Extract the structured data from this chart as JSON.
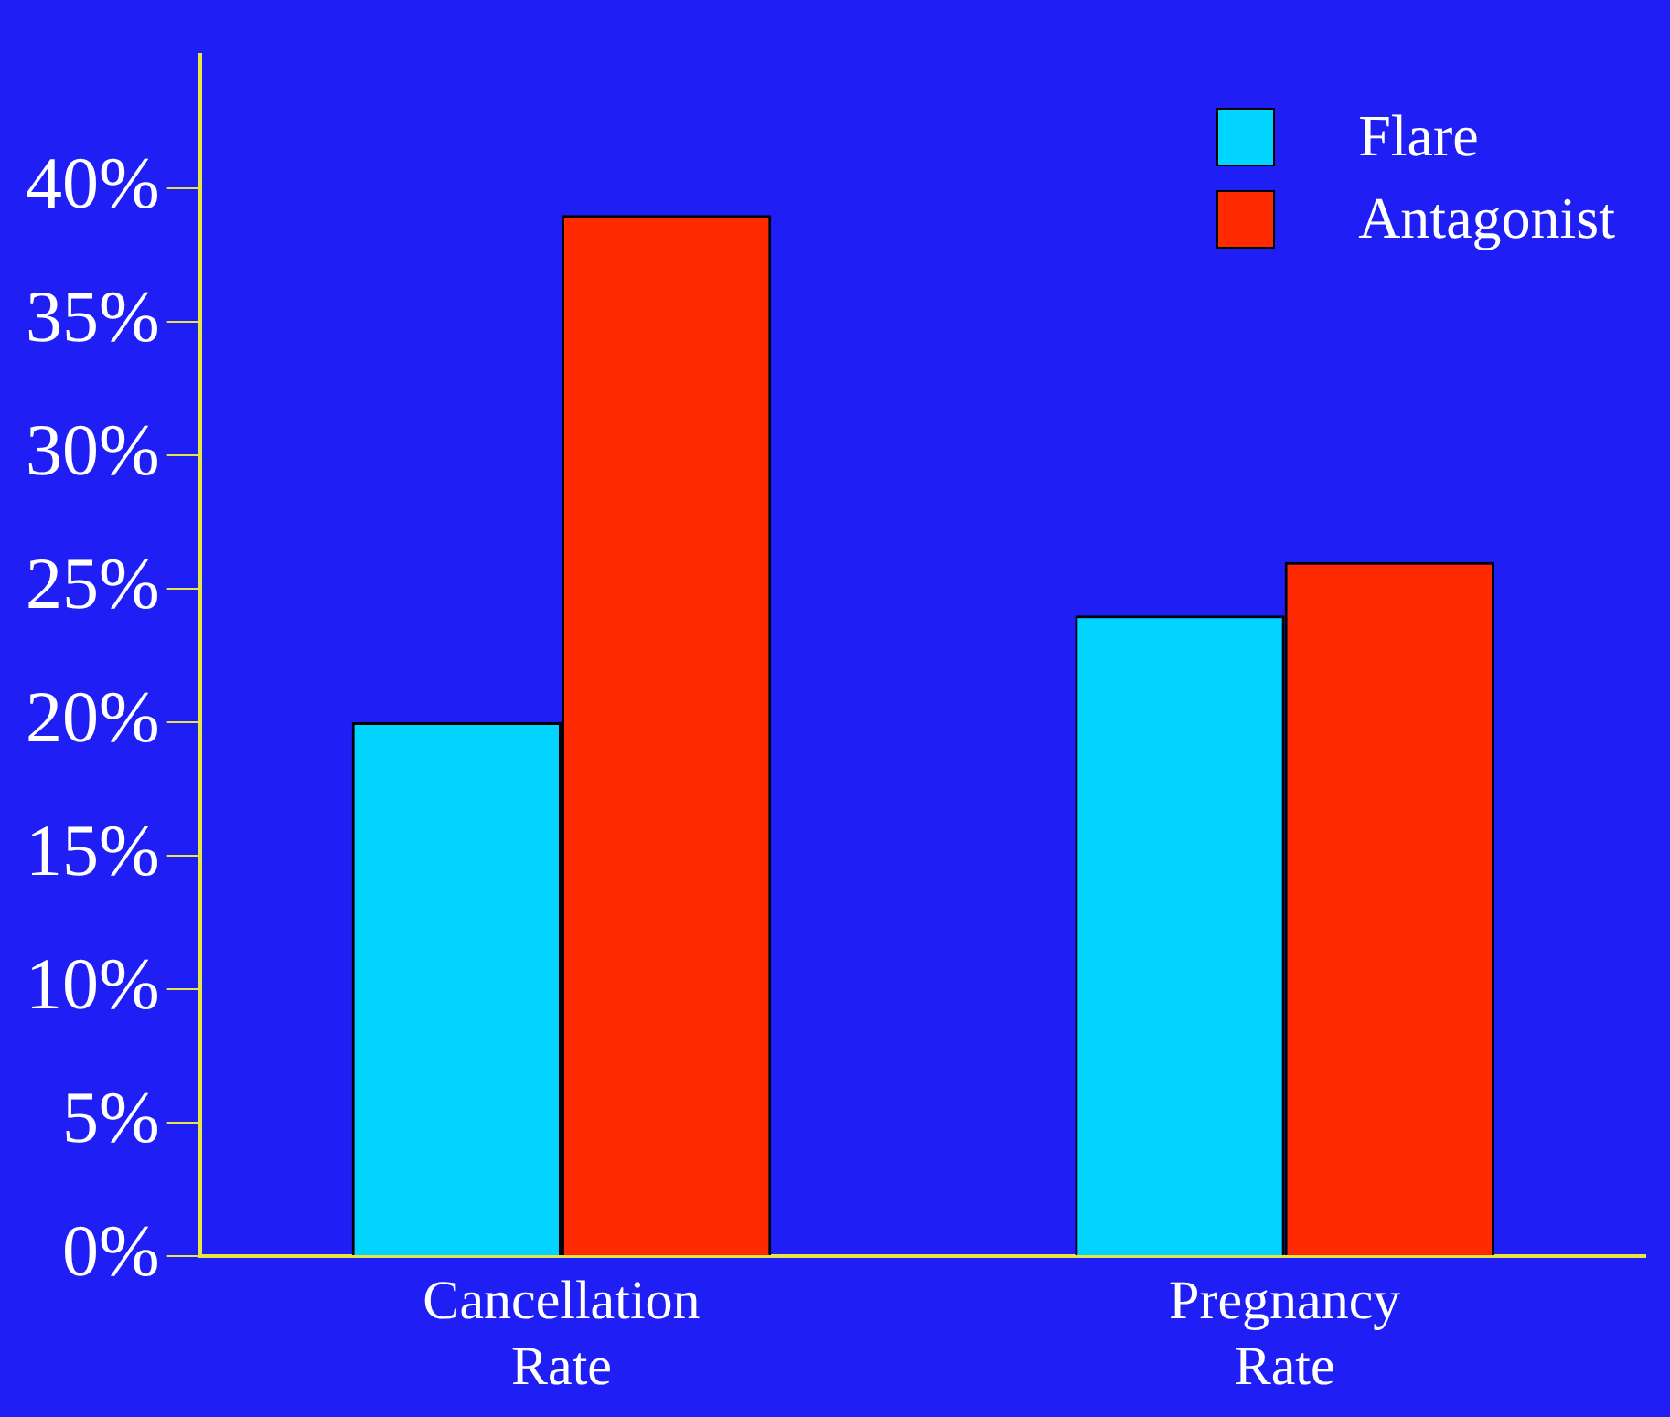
{
  "chart_data": {
    "type": "bar",
    "categories": [
      "Cancellation Rate",
      "Pregnancy Rate"
    ],
    "series": [
      {
        "name": "Flare",
        "color": "#00d4ff",
        "values": [
          20,
          24
        ]
      },
      {
        "name": "Antagonist",
        "color": "#ff2a00",
        "values": [
          39,
          26
        ]
      }
    ],
    "ylim": [
      0,
      45
    ],
    "yticks": [
      {
        "value": 0,
        "label": "0%"
      },
      {
        "value": 5,
        "label": "5%"
      },
      {
        "value": 10,
        "label": "10%"
      },
      {
        "value": 15,
        "label": "15%"
      },
      {
        "value": 20,
        "label": "20%"
      },
      {
        "value": 25,
        "label": "25%"
      },
      {
        "value": 30,
        "label": "30%"
      },
      {
        "value": 35,
        "label": "35%"
      },
      {
        "value": 40,
        "label": "40%"
      }
    ],
    "grid": false,
    "legend": "top right"
  }
}
